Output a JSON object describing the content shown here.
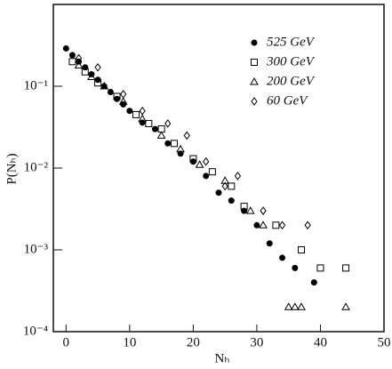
{
  "chart_data": {
    "type": "scatter",
    "x_label": "Nₕ",
    "y_label": "P(Nₕ)",
    "xlim": [
      -2,
      50
    ],
    "xticks": [
      0,
      10,
      20,
      30,
      40,
      50
    ],
    "ylim": [
      0.0001,
      1
    ],
    "log_y": true,
    "yticks": [
      {
        "value": 0.0001,
        "label": "10⁻⁴"
      },
      {
        "value": 0.001,
        "label": "10⁻³"
      },
      {
        "value": 0.01,
        "label": "10⁻²"
      },
      {
        "value": 0.1,
        "label": "10⁻¹"
      }
    ],
    "series": [
      {
        "name": "525 GeV",
        "color": "#000000",
        "marker": "circle",
        "x": [
          0,
          1,
          2,
          3,
          4,
          5,
          6,
          7,
          8,
          9,
          10,
          12,
          14,
          16,
          18,
          20,
          22,
          24,
          26,
          28,
          30,
          32,
          34,
          36,
          39
        ],
        "values": [
          0.29,
          0.24,
          0.2,
          0.17,
          0.14,
          0.12,
          0.1,
          0.085,
          0.07,
          0.06,
          0.05,
          0.036,
          0.03,
          0.02,
          0.015,
          0.012,
          0.008,
          0.005,
          0.004,
          0.003,
          0.002,
          0.0012,
          0.0008,
          0.0006,
          0.0004
        ]
      },
      {
        "name": "300 GeV",
        "color": "#000000",
        "marker": "square",
        "x": [
          1,
          3,
          5,
          8,
          11,
          13,
          15,
          17,
          20,
          23,
          26,
          28,
          33,
          37,
          40,
          44
        ],
        "values": [
          0.2,
          0.15,
          0.11,
          0.075,
          0.045,
          0.035,
          0.03,
          0.02,
          0.013,
          0.009,
          0.006,
          0.0034,
          0.002,
          0.001,
          0.0006,
          0.0006
        ]
      },
      {
        "name": "200 GeV",
        "color": "#000000",
        "marker": "triangle",
        "x": [
          2,
          4,
          6,
          9,
          12,
          15,
          18,
          21,
          25,
          29,
          31,
          35,
          36,
          37,
          44
        ],
        "values": [
          0.18,
          0.13,
          0.1,
          0.065,
          0.04,
          0.025,
          0.017,
          0.011,
          0.007,
          0.003,
          0.002,
          0.0002,
          0.0002,
          0.0002,
          0.0002
        ]
      },
      {
        "name": "60 GeV",
        "color": "#000000",
        "marker": "diamond",
        "x": [
          2,
          5,
          9,
          12,
          16,
          19,
          22,
          25,
          27,
          31,
          34,
          38
        ],
        "values": [
          0.22,
          0.17,
          0.08,
          0.05,
          0.035,
          0.025,
          0.012,
          0.006,
          0.008,
          0.003,
          0.002,
          0.002
        ]
      }
    ]
  }
}
